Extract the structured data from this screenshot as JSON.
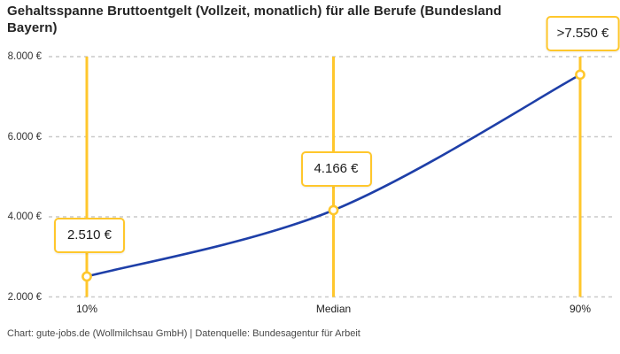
{
  "title": "Gehaltsspanne Bruttoentgelt (Vollzeit, monatlich) für alle Berufe (Bundesland\nBayern)",
  "footer": "Chart: gute-jobs.de (Wollmilchsau GmbH) | Datenquelle: Bundesagentur für Arbeit",
  "colors": {
    "accent_yellow": "#FFC72C",
    "line_blue": "#1E3FA8",
    "grid_gray": "#C9C9C9",
    "title_text": "#252525",
    "axis_text": "#333333",
    "footer_text": "#484848"
  },
  "chart_data": {
    "type": "line",
    "title": "Gehaltsspanne Bruttoentgelt (Vollzeit, monatlich) für alle Berufe (Bundesland Bayern)",
    "categories": [
      "10%",
      "Median",
      "90%"
    ],
    "values": [
      2510,
      4166,
      7550
    ],
    "point_labels": [
      "2.510 €",
      "4.166 €",
      ">7.550 €"
    ],
    "xlabel": "",
    "ylabel": "",
    "ylim": [
      2000,
      8000
    ],
    "y_ticks": {
      "values": [
        8000,
        6000,
        4000,
        2000
      ],
      "labels": [
        "8.000 €",
        "6.000 €",
        "4.000 €",
        "2.000 €"
      ]
    },
    "grid": "horizontal-dashed",
    "legend": "none",
    "marker": "open-circle",
    "annotation_style": "value boxes above yellow percentile lines"
  }
}
